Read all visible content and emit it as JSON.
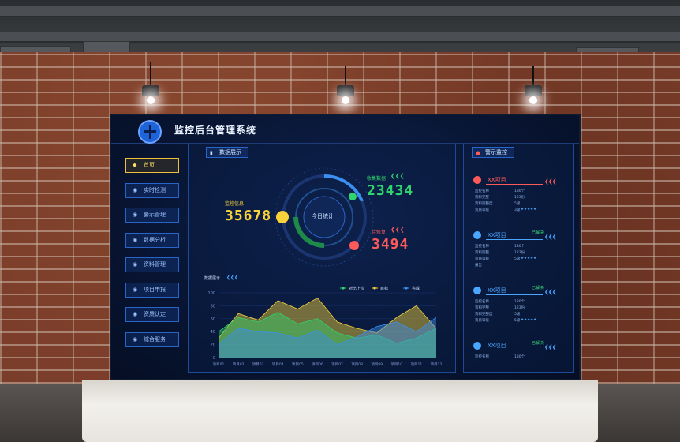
{
  "app": {
    "title": "监控后台管理系统"
  },
  "nav": {
    "items": [
      {
        "label": "首页",
        "active": true
      },
      {
        "label": "实时检测",
        "active": false
      },
      {
        "label": "警示管理",
        "active": false
      },
      {
        "label": "数据分析",
        "active": false
      },
      {
        "label": "资料管理",
        "active": false
      },
      {
        "label": "项目申报",
        "active": false
      },
      {
        "label": "资质认定",
        "active": false
      },
      {
        "label": "综合服务",
        "active": false
      }
    ]
  },
  "data_panel": {
    "title": "数据展示",
    "icon": "bar-chart-icon",
    "center_label": "今日统计",
    "monitor": {
      "label": "监控信息",
      "value": "35678",
      "color": "#f7d23a"
    },
    "collect": {
      "label": "收集数据",
      "value": "23434",
      "color": "#2fd46e"
    },
    "warn": {
      "label": "待修复",
      "value": "3494",
      "color": "#ff5a5a"
    }
  },
  "alert_panel": {
    "title": "警示监控",
    "icon": "alarm-icon",
    "items": [
      {
        "title": "XX项目",
        "status": "",
        "color": "#ff5a5a",
        "rows": [
          {
            "k": "监控名称",
            "v": "180个"
          },
          {
            "k": "资料完整",
            "v": "123份"
          },
          {
            "k": "资料完整度",
            "v": "5级"
          },
          {
            "k": "资质等级",
            "v": "3级",
            "stars": "★★★★★"
          }
        ]
      },
      {
        "title": "XX项目",
        "status": "已解决",
        "color": "#4aa6ff",
        "rows": [
          {
            "k": "监控名称",
            "v": "180个"
          },
          {
            "k": "资料完整",
            "v": "123份"
          },
          {
            "k": "资质等级",
            "v": "5级",
            "stars": "★★★★★"
          },
          {
            "k": "报告",
            "v": ""
          }
        ]
      },
      {
        "title": "XX项目",
        "status": "已解决",
        "color": "#4aa6ff",
        "rows": [
          {
            "k": "监控名称",
            "v": "180个"
          },
          {
            "k": "资料完整",
            "v": "123份"
          },
          {
            "k": "资料完整度",
            "v": "5级"
          },
          {
            "k": "资质等级",
            "v": "5级",
            "stars": "★★★★★"
          }
        ]
      },
      {
        "title": "XX项目",
        "status": "已解决",
        "color": "#4aa6ff",
        "rows": [
          {
            "k": "监控名称",
            "v": "180个"
          }
        ]
      }
    ]
  },
  "chart_data": {
    "type": "area",
    "title": "数据展示",
    "categories": [
      "项目01",
      "项目02",
      "项目03",
      "项目04",
      "项目05",
      "项目06",
      "项目07",
      "项目08",
      "项目09",
      "项目10",
      "项目11",
      "项目12"
    ],
    "ylim": [
      0,
      100
    ],
    "yticks": [
      0,
      20,
      40,
      60,
      80,
      100
    ],
    "legend_position": "top-right",
    "series": [
      {
        "name": "对比上次",
        "color": "#2fd46e",
        "values": [
          40,
          62,
          55,
          70,
          52,
          60,
          38,
          30,
          35,
          22,
          30,
          45
        ]
      },
      {
        "name": "目标",
        "color": "#f7d23a",
        "values": [
          30,
          68,
          58,
          88,
          75,
          92,
          55,
          45,
          38,
          62,
          80,
          45
        ]
      },
      {
        "name": "完成",
        "color": "#3a8ff0",
        "values": [
          20,
          45,
          40,
          38,
          30,
          42,
          20,
          32,
          48,
          55,
          40,
          62
        ]
      }
    ]
  }
}
